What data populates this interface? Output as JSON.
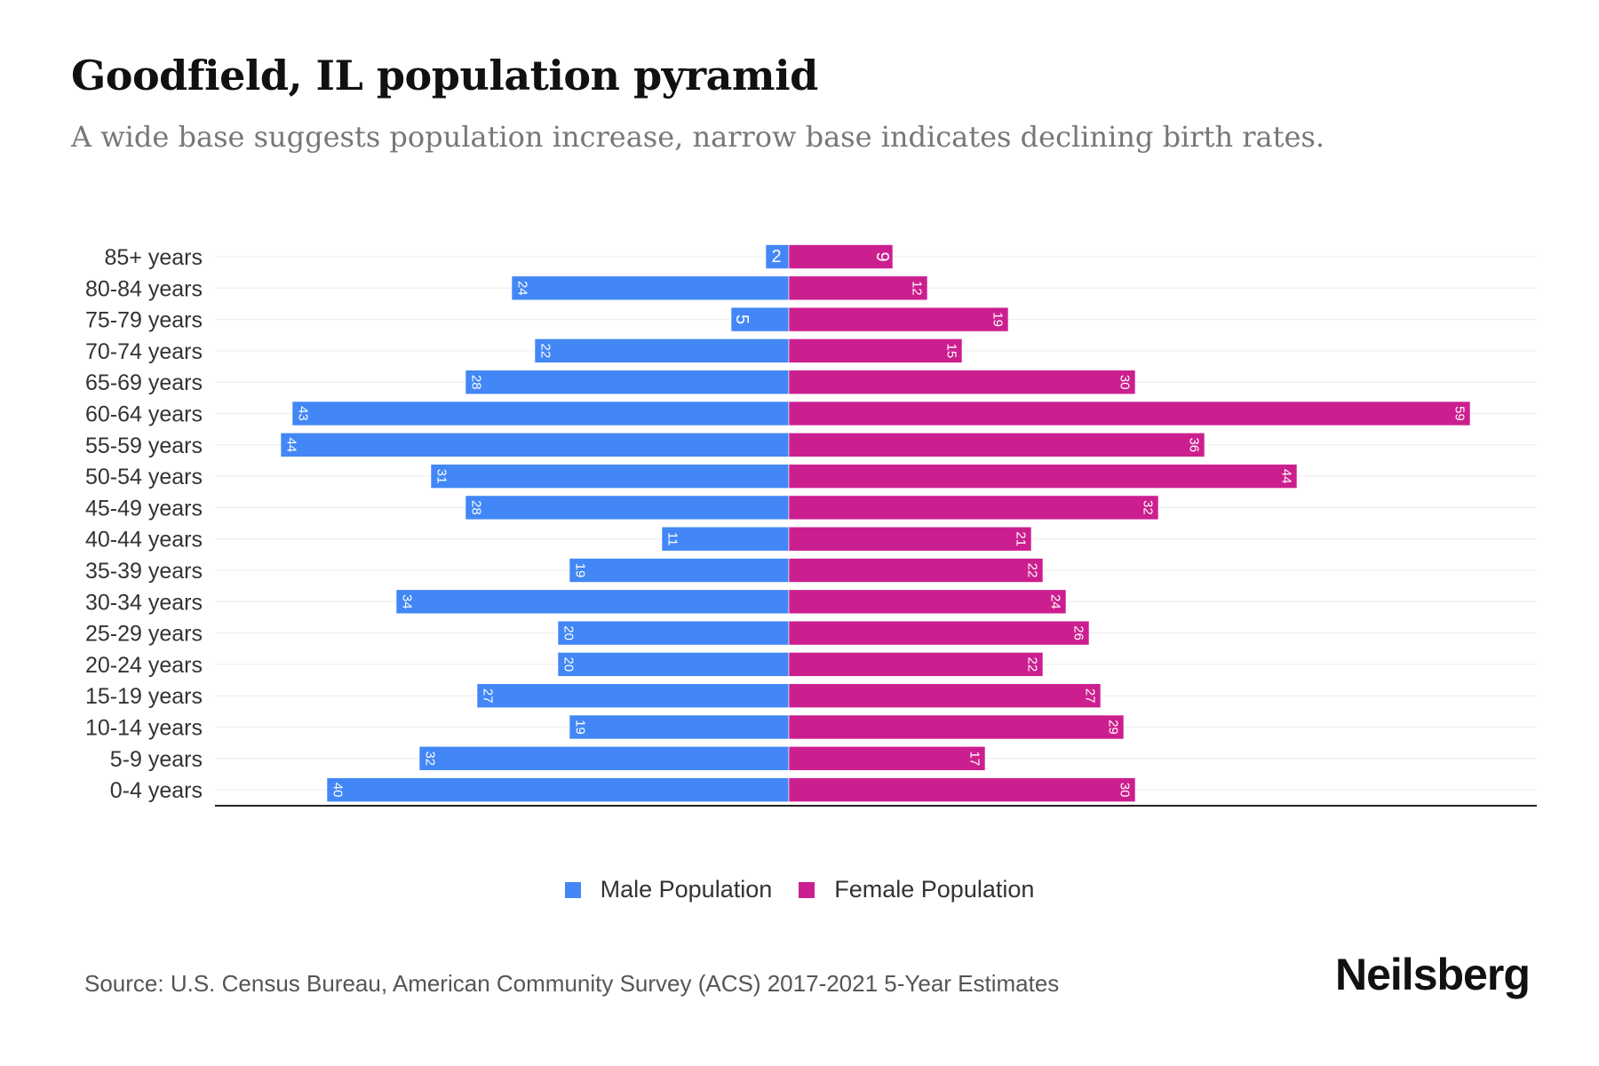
{
  "chart_data": {
    "type": "bar",
    "orientation": "horizontal-pyramid",
    "title": "Goodfield, IL population pyramid",
    "subtitle": "A wide base suggests population increase, narrow base indicates declining birth rates.",
    "categories": [
      "85+ years",
      "80-84 years",
      "75-79 years",
      "70-74 years",
      "65-69 years",
      "60-64 years",
      "55-59 years",
      "50-54 years",
      "45-49 years",
      "40-44 years",
      "35-39 years",
      "30-34 years",
      "25-29 years",
      "20-24 years",
      "15-19 years",
      "10-14 years",
      "5-9 years",
      "0-4 years"
    ],
    "series": [
      {
        "name": "Male Population",
        "color": "#4287f5",
        "values": [
          2,
          24,
          5,
          22,
          28,
          43,
          44,
          31,
          28,
          11,
          19,
          34,
          20,
          20,
          27,
          19,
          32,
          40
        ]
      },
      {
        "name": "Female Population",
        "color": "#cc1f8f",
        "values": [
          9,
          12,
          19,
          15,
          30,
          59,
          36,
          44,
          32,
          21,
          22,
          24,
          26,
          22,
          27,
          29,
          17,
          30
        ]
      }
    ],
    "legend_position": "bottom-center",
    "grid": true
  },
  "source": "Source: U.S. Census Bureau, American Community Survey (ACS) 2017-2021 5-Year Estimates",
  "logo": "Neilsberg"
}
